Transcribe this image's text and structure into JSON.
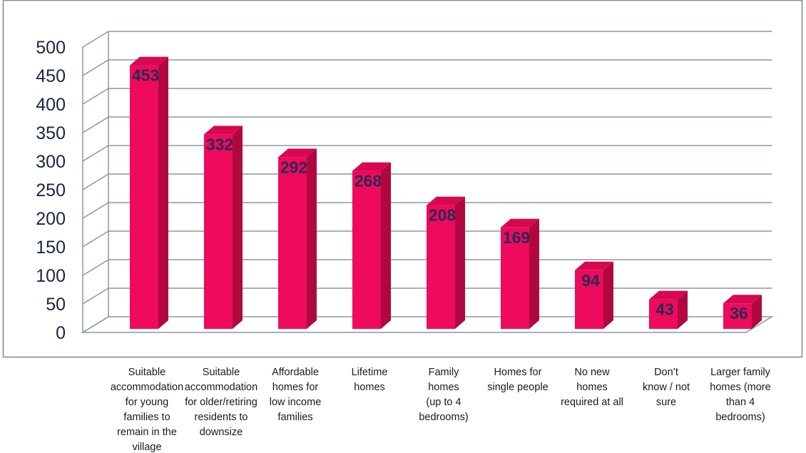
{
  "chart_data": {
    "type": "bar",
    "categories": [
      "Suitable accommodation for young families to remain in the village",
      "Suitable accommodation for older/retiring residents to downsize",
      "Affordable homes for low income families",
      "Lifetime homes",
      "Family homes (up to 4 bedrooms)",
      "Homes for single people",
      "No new homes required at all",
      "Don’t know / not sure",
      "Larger family homes (more than 4 bedrooms)"
    ],
    "category_lines": [
      [
        "Suitable",
        "accommodation",
        "for young",
        "families to",
        "remain in the",
        "village"
      ],
      [
        "Suitable",
        "accommodation",
        "for older/retiring",
        "residents to",
        "downsize"
      ],
      [
        "Affordable",
        "homes for",
        "low income",
        "families"
      ],
      [
        "Lifetime",
        "homes"
      ],
      [
        "Family",
        "homes",
        "(up to 4",
        "bedrooms)"
      ],
      [
        "Homes for",
        "single people"
      ],
      [
        "No new",
        "homes",
        "required at all"
      ],
      [
        "Don’t",
        "know / not",
        "sure"
      ],
      [
        "Larger family",
        "homes (more",
        "than 4",
        "bedrooms)"
      ]
    ],
    "values": [
      453,
      332,
      292,
      268,
      208,
      169,
      94,
      43,
      36
    ],
    "data_labels": [
      "453",
      "332",
      "292",
      "268",
      "208",
      "169",
      "94",
      "43",
      "36"
    ],
    "y_ticks": [
      "0",
      "50",
      "100",
      "150",
      "200",
      "250",
      "300",
      "350",
      "400",
      "450",
      "500"
    ],
    "ylim": [
      0,
      500
    ],
    "grid": true,
    "title": "",
    "xlabel": "",
    "ylabel": "",
    "colors": {
      "bar_front": "#ee0a5c",
      "bar_side": "#b0073f",
      "bar_top": "#d80850",
      "grid": "#8b95a5",
      "axis_text": "#1a2642",
      "value_text": "#2a2a50",
      "frame": "#7f8792"
    }
  }
}
